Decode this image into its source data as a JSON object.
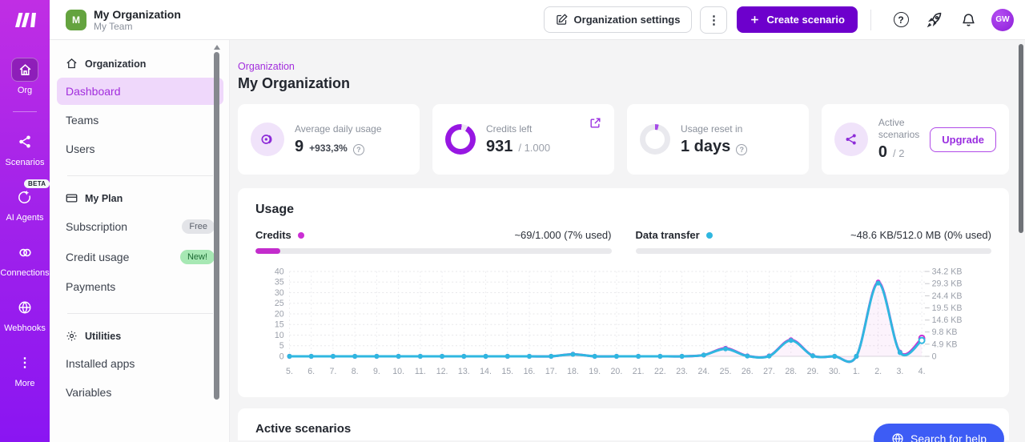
{
  "brand": {
    "accent": "#6d00cc",
    "magenta": "#cb2fd4",
    "cyan": "#2fb7e0"
  },
  "header": {
    "org_badge": "M",
    "org_name": "My Organization",
    "team_name": "My Team",
    "settings_label": "Organization settings",
    "kebab": "⋮",
    "create_label": "Create scenario",
    "help_glyph": "?",
    "avatar_initials": "GW"
  },
  "rail": {
    "items": [
      {
        "label": "Org",
        "icon": "home"
      },
      {
        "label": "Scenarios",
        "icon": "share-nodes"
      },
      {
        "label": "AI Agents",
        "icon": "ai-sparkle",
        "badge": "BETA"
      },
      {
        "label": "Connections",
        "icon": "links"
      },
      {
        "label": "Webhooks",
        "icon": "globe"
      },
      {
        "label": "More",
        "icon": "kebab",
        "glyph": "⋮"
      }
    ]
  },
  "sidebar": {
    "sections": [
      {
        "header": "Organization",
        "items": [
          {
            "label": "Dashboard",
            "active": true
          },
          {
            "label": "Teams"
          },
          {
            "label": "Users"
          }
        ]
      },
      {
        "header": "My Plan",
        "items": [
          {
            "label": "Subscription",
            "badge": "Free"
          },
          {
            "label": "Credit usage",
            "badge": "New!"
          },
          {
            "label": "Payments"
          }
        ]
      },
      {
        "header": "Utilities",
        "items": [
          {
            "label": "Installed apps"
          },
          {
            "label": "Variables"
          }
        ]
      }
    ]
  },
  "main": {
    "breadcrumb": "Organization",
    "title": "My Organization",
    "cards": [
      {
        "label": "Average daily usage",
        "value": "9",
        "delta": "+933,3%"
      },
      {
        "label": "Credits left",
        "value": "931",
        "suffix": "/ 1.000"
      },
      {
        "label": "Usage reset in",
        "value": "1 days"
      },
      {
        "label": "Active scenarios",
        "value": "0",
        "suffix": "/ 2",
        "action": "Upgrade"
      }
    ],
    "usage": {
      "title": "Usage",
      "credits_label": "Credits",
      "credits_usage": "~69/1.000 (7% used)",
      "credits_pct": 7,
      "transfer_label": "Data transfer",
      "transfer_usage": "~48.6 KB/512.0 MB (0% used)",
      "transfer_pct": 0
    },
    "active_scenarios_title": "Active scenarios",
    "help_button_label": "Search for help"
  },
  "chart_data": {
    "type": "line",
    "title": "Usage",
    "categories": [
      "5.",
      "6.",
      "7.",
      "8.",
      "9.",
      "10.",
      "11.",
      "12.",
      "13.",
      "14.",
      "15.",
      "16.",
      "17.",
      "18.",
      "19.",
      "20.",
      "21.",
      "22.",
      "23.",
      "24.",
      "25.",
      "26.",
      "27.",
      "28.",
      "29.",
      "30.",
      "1.",
      "2.",
      "3.",
      "4."
    ],
    "series": [
      {
        "name": "Credits",
        "color": "#cb2fd4",
        "axis": "left",
        "values": [
          0,
          0,
          0,
          0,
          0,
          0,
          0,
          0,
          0,
          0,
          0,
          0,
          0,
          1,
          0,
          0,
          0,
          0,
          0,
          0.6,
          3.8,
          0.2,
          0.2,
          7.8,
          0.3,
          0,
          0,
          35,
          2,
          8.5
        ]
      },
      {
        "name": "Data transfer (KB)",
        "color": "#2fb7e0",
        "axis": "right",
        "values": [
          0,
          0,
          0,
          0,
          0,
          0,
          0,
          0,
          0,
          0,
          0,
          0,
          0,
          0.8,
          0,
          0,
          0,
          0,
          0,
          0.5,
          3.0,
          0.1,
          0.1,
          6.4,
          0.2,
          0,
          0,
          29.5,
          1.5,
          6.4
        ]
      }
    ],
    "left_axis": {
      "ticks": [
        0,
        5,
        10,
        15,
        20,
        25,
        30,
        35,
        40
      ],
      "max": 40
    },
    "right_axis": {
      "labels": [
        "34.2 KB",
        "29.3 KB",
        "24.4 KB",
        "19.5 KB",
        "14.6 KB",
        "9.8 KB",
        "4.9 KB",
        "0"
      ],
      "values": [
        34.2,
        29.3,
        24.4,
        19.5,
        14.6,
        9.8,
        4.9,
        0
      ],
      "max": 34.2
    },
    "grid": true,
    "legend_position": "top",
    "last_point_open_marker": true
  }
}
